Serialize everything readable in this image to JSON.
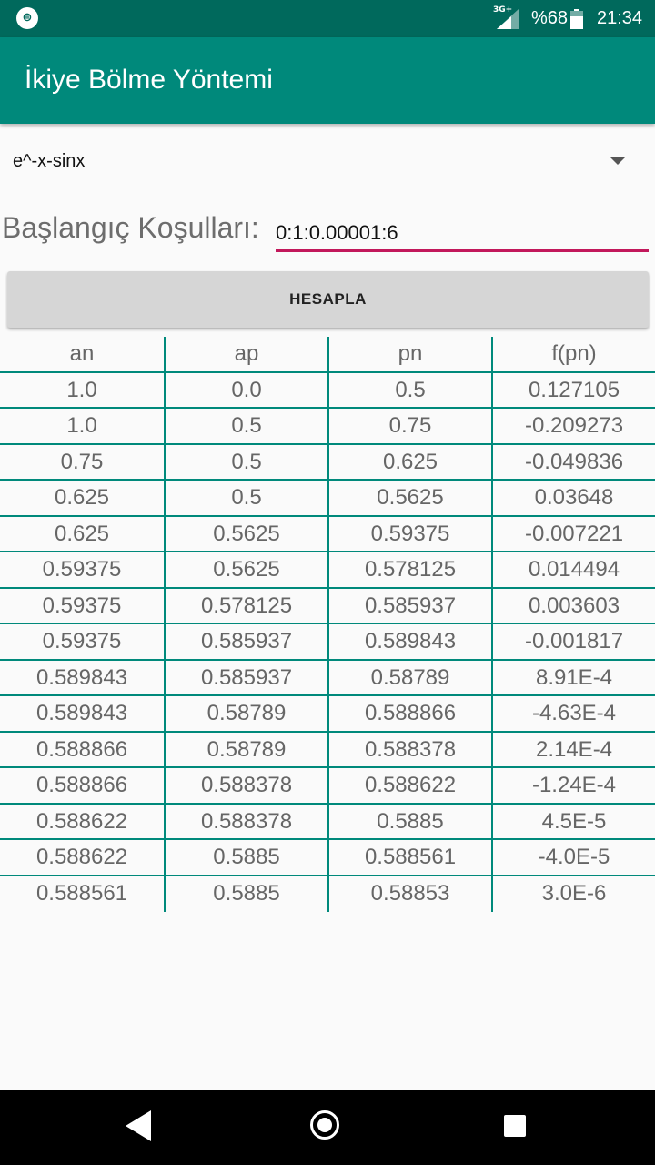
{
  "status": {
    "network": "3G+",
    "battery": "%68",
    "time": "21:34"
  },
  "appbar": {
    "title": "İkiye Bölme Yöntemi"
  },
  "spinner": {
    "selected": "e^-x-sinx"
  },
  "conditions": {
    "label": "Başlangıç Koşulları:",
    "value": "0:1:0.00001:6"
  },
  "button": {
    "label": "HESAPLA"
  },
  "table": {
    "headers": [
      "an",
      "ap",
      "pn",
      "f(pn)"
    ],
    "rows": [
      [
        "1.0",
        "0.0",
        "0.5",
        "0.127105"
      ],
      [
        "1.0",
        "0.5",
        "0.75",
        "-0.209273"
      ],
      [
        "0.75",
        "0.5",
        "0.625",
        "-0.049836"
      ],
      [
        "0.625",
        "0.5",
        "0.5625",
        "0.03648"
      ],
      [
        "0.625",
        "0.5625",
        "0.59375",
        "-0.007221"
      ],
      [
        "0.59375",
        "0.5625",
        "0.578125",
        "0.014494"
      ],
      [
        "0.59375",
        "0.578125",
        "0.585937",
        "0.003603"
      ],
      [
        "0.59375",
        "0.585937",
        "0.589843",
        "-0.001817"
      ],
      [
        "0.589843",
        "0.585937",
        "0.58789",
        "8.91E-4"
      ],
      [
        "0.589843",
        "0.58789",
        "0.588866",
        "-4.63E-4"
      ],
      [
        "0.588866",
        "0.58789",
        "0.588378",
        "2.14E-4"
      ],
      [
        "0.588866",
        "0.588378",
        "0.588622",
        "-1.24E-4"
      ],
      [
        "0.588622",
        "0.588378",
        "0.5885",
        "4.5E-5"
      ],
      [
        "0.588622",
        "0.5885",
        "0.588561",
        "-4.0E-5"
      ],
      [
        "0.588561",
        "0.5885",
        "0.58853",
        "3.0E-6"
      ]
    ]
  },
  "colors": {
    "statusbar": "#00695c",
    "appbar": "#00897b",
    "accent": "#c2185b",
    "grid": "#00897b"
  }
}
